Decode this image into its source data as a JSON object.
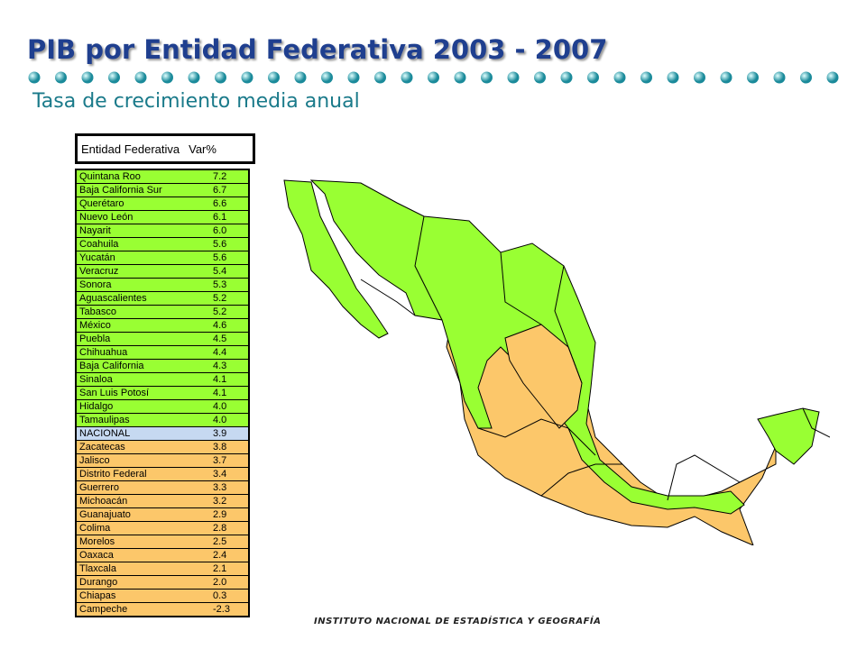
{
  "header": {
    "title": "PIB por Entidad Federativa 2003 - 2007",
    "subtitle": "Tasa de crecimiento media anual"
  },
  "table": {
    "columns": [
      "Entidad Federativa",
      "Var%"
    ],
    "rows": [
      [
        "Quintana Roo",
        "7.2"
      ],
      [
        "Baja California Sur",
        "6.7"
      ],
      [
        "Querétaro",
        "6.6"
      ],
      [
        "Nuevo León",
        "6.1"
      ],
      [
        "Nayarit",
        "6.0"
      ],
      [
        "Coahuila",
        "5.6"
      ],
      [
        "Yucatán",
        "5.6"
      ],
      [
        "Veracruz",
        "5.4"
      ],
      [
        "Sonora",
        "5.3"
      ],
      [
        "Aguascalientes",
        "5.2"
      ],
      [
        "Tabasco",
        "5.2"
      ],
      [
        "México",
        "4.6"
      ],
      [
        "Puebla",
        "4.5"
      ],
      [
        "Chihuahua",
        "4.4"
      ],
      [
        "Baja California",
        "4.3"
      ],
      [
        "Sinaloa",
        "4.1"
      ],
      [
        "San Luis Potosí",
        "4.1"
      ],
      [
        "Hidalgo",
        "4.0"
      ],
      [
        "Tamaulipas",
        "4.0"
      ],
      [
        "NACIONAL",
        "3.9"
      ],
      [
        "Zacatecas",
        "3.8"
      ],
      [
        "Jalisco",
        "3.7"
      ],
      [
        "Distrito Federal",
        "3.4"
      ],
      [
        "Guerrero",
        "3.3"
      ],
      [
        "Michoacán",
        "3.2"
      ],
      [
        "Guanajuato",
        "2.9"
      ],
      [
        "Colima",
        "2.8"
      ],
      [
        "Morelos",
        "2.5"
      ],
      [
        "Oaxaca",
        "2.4"
      ],
      [
        "Tlaxcala",
        "2.1"
      ],
      [
        "Durango",
        "2.0"
      ],
      [
        "Chiapas",
        "0.3"
      ],
      [
        "Campeche",
        "-2.3"
      ]
    ]
  },
  "footer": "INSTITUTO NACIONAL DE ESTADÍSTICA Y GEOGRAFÍA"
}
